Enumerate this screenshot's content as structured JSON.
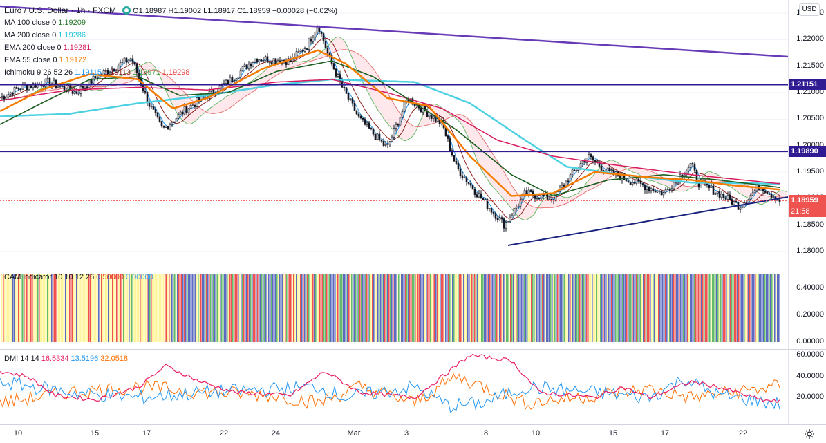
{
  "symbol": {
    "title": "Euro / U.S. Dollar · 1h · FXCM",
    "ohlc": "O1.18987 H1.19002 L1.18917 C1.18959 −0.00028 (−0.02%)"
  },
  "indicators": [
    {
      "label": "MA 100 close 0",
      "value": "1.19209",
      "color": "#2e7d32"
    },
    {
      "label": "MA 200 close 0",
      "value": "1.19286",
      "color": "#26c6da"
    },
    {
      "label": "EMA 200 close 0",
      "value": "1.19281",
      "color": "#d81b60"
    },
    {
      "label": "EMA 55 close 0",
      "value": "1.19172",
      "color": "#f57c00"
    }
  ],
  "ichimoku": {
    "label": "Ichimoku 9 26 52 26",
    "values": [
      {
        "v": "1.19115",
        "color": "#2196f3"
      },
      {
        "v": "1.19113",
        "color": "#8d1c1c"
      },
      {
        "v": "1.18971",
        "color": "#43a047"
      },
      {
        "v": "1.19298",
        "color": "#e53935"
      }
    ]
  },
  "cam": {
    "label": "CAM indicator 10 10 12 26",
    "values": [
      {
        "v": "0.50000",
        "color": "#e53935"
      },
      {
        "v": "0.00000",
        "color": "#42a5f5"
      }
    ]
  },
  "dmi": {
    "label": "DMI 14 14",
    "values": [
      {
        "v": "16.5334",
        "color": "#e91e63"
      },
      {
        "v": "13.5196",
        "color": "#2196f3"
      },
      {
        "v": "32.0518",
        "color": "#ff6d00"
      }
    ]
  },
  "price_axis": {
    "ticks": [
      "1.22500",
      "1.22000",
      "1.21500",
      "1.21000",
      "1.20500",
      "1.20000",
      "1.19500",
      "1.19000",
      "1.18500",
      "1.18000"
    ],
    "currency": "USD"
  },
  "price_tags": [
    {
      "v": "1.21151",
      "color": "#311b92"
    },
    {
      "v": "1.19890",
      "color": "#311b92"
    },
    {
      "v": "1.18959",
      "color": "#ef5350"
    },
    {
      "v": "21:58",
      "color": "#ef5350"
    }
  ],
  "cam_axis": {
    "ticks": [
      "0.40000",
      "0.20000",
      "0.00000"
    ]
  },
  "dmi_axis": {
    "ticks": [
      "60.0000",
      "40.0000",
      "20.0000"
    ]
  },
  "time_axis": {
    "labels": [
      "10",
      "15",
      "17",
      "22",
      "24",
      "Mar",
      "3",
      "8",
      "10",
      "15",
      "17",
      "22"
    ]
  },
  "chart_data": {
    "type": "line",
    "instrument": "EURUSD 1h",
    "price_range": [
      1.1775,
      1.2275
    ],
    "horizontal_levels": [
      1.21151,
      1.1989
    ],
    "last_price": 1.18959,
    "candles_approx": {
      "x": [
        "10",
        "15",
        "17",
        "22",
        "24",
        "Mar",
        "3",
        "8",
        "10",
        "15",
        "17",
        "22"
      ],
      "close": [
        1.211,
        1.213,
        1.205,
        1.214,
        1.2205,
        1.207,
        1.2065,
        1.185,
        1.1905,
        1.195,
        1.193,
        1.1905
      ]
    },
    "cam_range": [
      0,
      0.5
    ],
    "dmi_range": [
      0,
      60
    ]
  }
}
